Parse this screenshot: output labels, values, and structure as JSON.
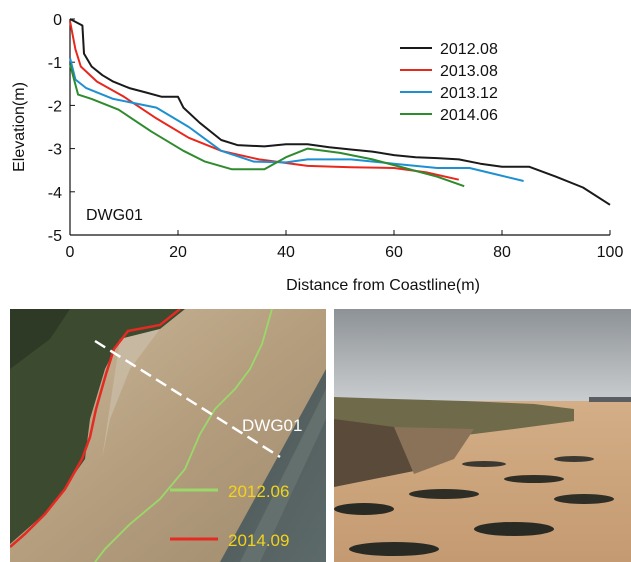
{
  "chart_data": {
    "type": "line",
    "xlabel": "Distance from Coastline(m)",
    "ylabel": "Elevation(m)",
    "xlim": [
      0,
      100
    ],
    "ylim": [
      -5,
      0
    ],
    "xticks": [
      0,
      20,
      40,
      60,
      80,
      100
    ],
    "yticks": [
      0,
      -1,
      -2,
      -3,
      -4,
      -5
    ],
    "grid": false,
    "legend_position": "top-right",
    "annotation": "DWG01",
    "series": [
      {
        "name": "2012.08",
        "color": "#1a1a1a",
        "x": [
          0,
          2.3,
          2.6,
          4,
          6,
          8,
          11,
          14,
          17,
          20,
          21,
          24,
          28,
          31,
          36,
          40,
          44,
          48,
          52,
          56,
          60,
          64,
          68,
          72,
          76,
          80,
          85,
          90,
          95,
          100
        ],
        "y": [
          0,
          -0.15,
          -0.8,
          -1.1,
          -1.3,
          -1.45,
          -1.6,
          -1.7,
          -1.8,
          -1.8,
          -2.05,
          -2.4,
          -2.8,
          -2.92,
          -2.95,
          -2.9,
          -2.9,
          -2.97,
          -3.02,
          -3.07,
          -3.15,
          -3.2,
          -3.22,
          -3.25,
          -3.35,
          -3.42,
          -3.42,
          -3.65,
          -3.9,
          -4.3
        ]
      },
      {
        "name": "2013.08",
        "color": "#e8281e",
        "x": [
          0,
          1,
          2,
          5,
          10,
          16,
          22,
          28,
          35,
          44,
          52,
          60,
          66,
          72
        ],
        "y": [
          -0.05,
          -0.7,
          -1.1,
          -1.45,
          -1.8,
          -2.3,
          -2.75,
          -3.05,
          -3.25,
          -3.4,
          -3.43,
          -3.45,
          -3.55,
          -3.72
        ]
      },
      {
        "name": "2013.12",
        "color": "#1e90d2",
        "x": [
          0,
          1,
          3,
          8,
          16,
          22,
          28,
          34,
          40,
          44,
          52,
          60,
          68,
          74,
          79,
          84
        ],
        "y": [
          -0.9,
          -1.4,
          -1.6,
          -1.85,
          -2.05,
          -2.5,
          -3.05,
          -3.3,
          -3.32,
          -3.25,
          -3.25,
          -3.35,
          -3.45,
          -3.45,
          -3.6,
          -3.75
        ]
      },
      {
        "name": "2014.06",
        "color": "#2e8b2e",
        "x": [
          0,
          1.5,
          4,
          9,
          15,
          21,
          25,
          30,
          36,
          40,
          44,
          50,
          56,
          62,
          68,
          73
        ],
        "y": [
          -1.05,
          -1.75,
          -1.85,
          -2.1,
          -2.6,
          -3.05,
          -3.3,
          -3.48,
          -3.48,
          -3.2,
          -3.0,
          -3.1,
          -3.25,
          -3.45,
          -3.65,
          -3.87
        ]
      }
    ]
  },
  "photo_map": {
    "label_profile": "DWG01",
    "legend": [
      {
        "label": "2012.06",
        "color": "#9ad86a"
      },
      {
        "label": "2014.09",
        "color": "#e52a22"
      }
    ]
  }
}
